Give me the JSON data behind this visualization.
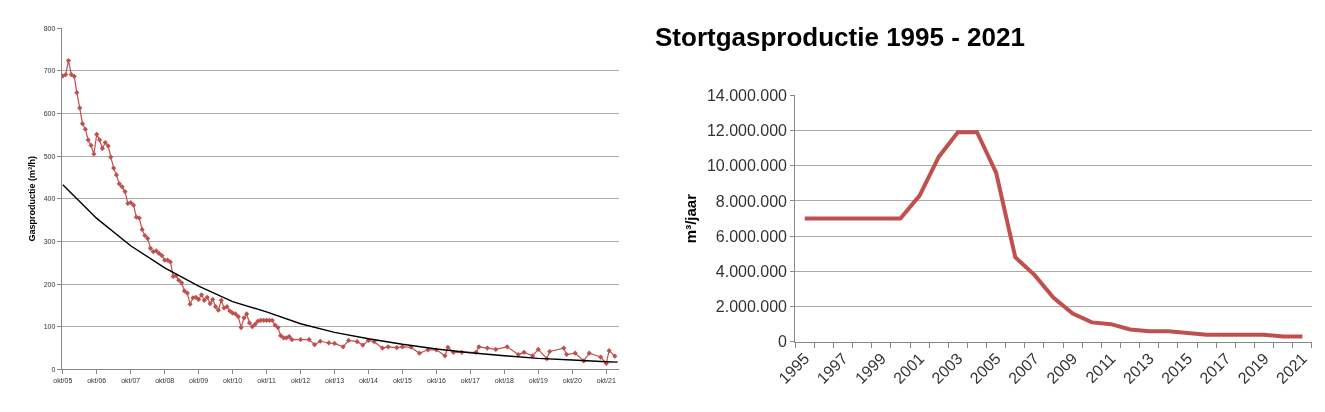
{
  "chart_data": [
    {
      "type": "scatter",
      "ylabel": "Gasproductie (m³/h)",
      "xlim": [
        "2005-09-20",
        "2022-02-15"
      ],
      "ylim": [
        0,
        800
      ],
      "yticks": [
        0,
        100,
        200,
        300,
        400,
        500,
        600,
        700,
        800
      ],
      "xticks": [
        {
          "value": "2005-10",
          "label": "okt/05"
        },
        {
          "value": "2006-10",
          "label": "okt/06"
        },
        {
          "value": "2007-10",
          "label": "okt/07"
        },
        {
          "value": "2008-10",
          "label": "okt/08"
        },
        {
          "value": "2009-10",
          "label": "okt/09"
        },
        {
          "value": "2010-10",
          "label": "okt/10"
        },
        {
          "value": "2011-10",
          "label": "okt/11"
        },
        {
          "value": "2012-10",
          "label": "okt/12"
        },
        {
          "value": "2013-10",
          "label": "okt/13"
        },
        {
          "value": "2014-10",
          "label": "okt/14"
        },
        {
          "value": "2015-10",
          "label": "okt/15"
        },
        {
          "value": "2016-10",
          "label": "okt/16"
        },
        {
          "value": "2017-10",
          "label": "okt/17"
        },
        {
          "value": "2018-10",
          "label": "okt/18"
        },
        {
          "value": "2019-10",
          "label": "okt/19"
        },
        {
          "value": "2020-10",
          "label": "okt/20"
        },
        {
          "value": "2021-10",
          "label": "okt/21"
        }
      ],
      "grid": "y",
      "marker": "diamond",
      "series": [
        {
          "type": "line",
          "color": "#c0504d",
          "x": [
            "2005-10",
            "2005-11",
            "2005-12",
            "2006-01",
            "2006-02",
            "2006-03",
            "2006-04",
            "2006-05",
            "2006-06",
            "2006-07",
            "2006-08",
            "2006-09",
            "2006-10",
            "2006-11",
            "2006-12",
            "2007-01",
            "2007-02",
            "2007-03",
            "2007-04",
            "2007-05",
            "2007-06",
            "2007-07",
            "2007-08",
            "2007-09",
            "2007-10",
            "2007-11",
            "2007-12",
            "2008-01",
            "2008-02",
            "2008-03",
            "2008-04",
            "2008-05",
            "2008-06",
            "2008-07",
            "2008-08",
            "2008-09",
            "2008-10",
            "2008-11",
            "2008-12",
            "2009-01",
            "2009-02",
            "2009-03",
            "2009-04",
            "2009-05",
            "2009-06",
            "2009-07",
            "2009-08",
            "2009-09",
            "2009-10",
            "2009-11",
            "2009-12",
            "2010-01",
            "2010-02",
            "2010-03",
            "2010-04",
            "2010-05",
            "2010-06",
            "2010-07",
            "2010-08",
            "2010-09",
            "2010-10",
            "2010-11",
            "2010-12",
            "2011-01",
            "2011-02",
            "2011-03",
            "2011-04",
            "2011-05",
            "2011-06",
            "2011-07",
            "2011-08",
            "2011-09",
            "2011-10",
            "2011-11",
            "2011-12",
            "2012-01",
            "2012-02",
            "2012-03",
            "2012-04",
            "2012-05",
            "2012-06",
            "2012-07",
            "2012-10",
            "2013-01",
            "2013-03",
            "2013-05",
            "2013-08",
            "2013-10",
            "2014-01",
            "2014-03",
            "2014-06",
            "2014-08",
            "2014-10",
            "2014-12",
            "2015-03",
            "2015-05",
            "2015-08",
            "2015-10",
            "2016-01",
            "2016-04",
            "2016-07",
            "2016-10",
            "2017-01",
            "2017-02",
            "2017-04",
            "2017-07",
            "2017-12",
            "2018-01",
            "2018-04",
            "2018-07",
            "2018-11",
            "2019-03",
            "2019-05",
            "2019-08",
            "2019-10",
            "2020-01",
            "2020-02",
            "2020-07",
            "2020-08",
            "2020-11",
            "2021-02",
            "2021-04",
            "2021-08",
            "2021-10",
            "2021-11",
            "2022-01"
          ],
          "values": [
            688,
            691,
            724,
            691,
            687,
            649,
            613,
            576,
            563,
            538,
            525,
            505,
            551,
            538,
            518,
            532,
            524,
            498,
            472,
            456,
            435,
            428,
            417,
            389,
            391,
            385,
            357,
            355,
            328,
            314,
            307,
            284,
            276,
            278,
            272,
            267,
            256,
            256,
            252,
            218,
            220,
            209,
            203,
            184,
            179,
            153,
            168,
            169,
            164,
            175,
            162,
            169,
            154,
            164,
            147,
            139,
            162,
            144,
            147,
            137,
            132,
            130,
            124,
            98,
            121,
            130,
            109,
            100,
            106,
            113,
            115,
            115,
            115,
            115,
            115,
            104,
            98,
            79,
            74,
            74,
            77,
            70,
            70,
            70,
            58,
            66,
            62,
            61,
            53,
            68,
            65,
            57,
            68,
            65,
            50,
            53,
            51,
            53,
            52,
            38,
            46,
            46,
            32,
            52,
            40,
            40,
            40,
            53,
            50,
            47,
            53,
            35,
            40,
            32,
            47,
            25,
            42,
            50,
            35,
            38,
            20,
            38,
            29,
            14,
            44,
            31
          ]
        },
        {
          "type": "line",
          "color": "#000000",
          "marker": "none",
          "x": [
            "2005-10",
            "2006-10",
            "2007-10",
            "2008-10",
            "2009-10",
            "2010-10",
            "2011-10",
            "2012-10",
            "2013-10",
            "2014-10",
            "2015-10",
            "2016-10",
            "2017-10",
            "2018-10",
            "2019-10",
            "2020-10",
            "2021-10",
            "2022-02"
          ],
          "values": [
            433,
            354,
            290,
            238,
            195,
            159,
            135,
            107,
            87,
            72,
            59,
            48,
            39,
            32,
            26,
            22,
            18,
            17
          ]
        }
      ]
    },
    {
      "type": "line",
      "title": "Stortgasproductie 1995 - 2021",
      "ylabel": "m³/jaar",
      "categories": [
        "1995",
        null,
        "1997",
        null,
        "1999",
        null,
        "2001",
        null,
        "2003",
        null,
        "2005",
        null,
        "2007",
        null,
        "2009",
        null,
        "2011",
        null,
        "2013",
        null,
        "2015",
        null,
        "2017",
        null,
        "2019",
        null,
        "2021"
      ],
      "ylim": [
        0,
        14000000
      ],
      "yticks": [
        0,
        {
          "value": 2000000,
          "label": "2.000.000"
        },
        {
          "value": 4000000,
          "label": "4.000.000"
        },
        {
          "value": 6000000,
          "label": "6.000.000"
        },
        {
          "value": 8000000,
          "label": "8.000.000"
        },
        {
          "value": 10000000,
          "label": "10.000.000"
        },
        {
          "value": 12000000,
          "label": "12.000.000"
        },
        {
          "value": 14000000,
          "label": "14.000.000"
        }
      ],
      "grid": "y",
      "color": "#c0504d",
      "values": [
        7000000,
        7000000,
        7000000,
        7000000,
        7000000,
        7000000,
        8300000,
        10500000,
        11900000,
        11900000,
        9600000,
        4800000,
        3800000,
        2500000,
        1600000,
        1100000,
        1000000,
        700000,
        600000,
        600000,
        500000,
        400000,
        400000,
        400000,
        400000,
        300000,
        300000
      ]
    }
  ]
}
